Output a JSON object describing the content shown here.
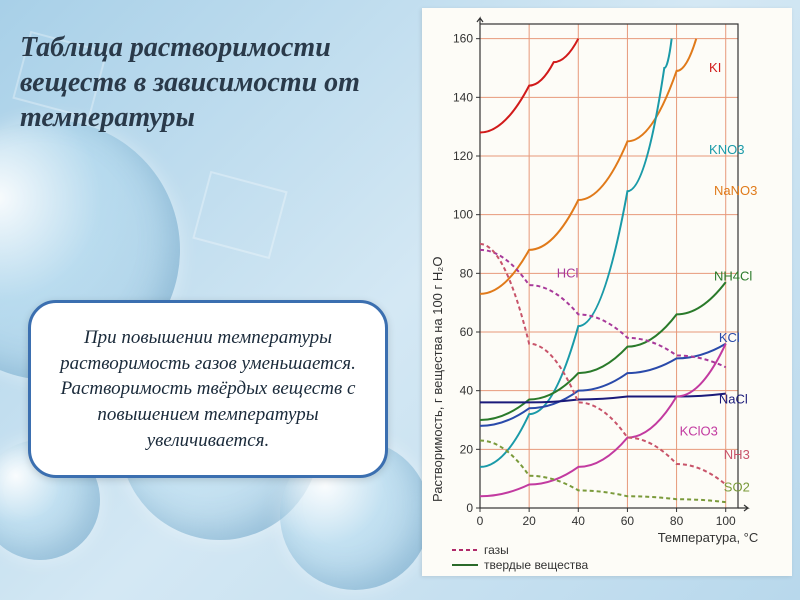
{
  "title": "Таблица растворимости веществ в зависимости от температуры",
  "callout": "При повышении температуры растворимость газов уменьшается. Растворимость твёрдых веществ с повышением температуры увеличивается.",
  "chart": {
    "type": "line",
    "background_color": "#fdfcf7",
    "grid_color": "#e7997a",
    "grid_width": 1,
    "axis_color": "#333333",
    "x": {
      "label": "Температура, °C",
      "min": 0,
      "max": 105,
      "ticks": [
        0,
        20,
        40,
        60,
        80,
        100
      ],
      "label_fontsize": 13
    },
    "y": {
      "label": "Растворимость, г вещества на 100 г H₂O",
      "min": 0,
      "max": 165,
      "ticks": [
        0,
        20,
        40,
        60,
        80,
        100,
        120,
        140,
        160
      ],
      "label_fontsize": 13
    },
    "legend": {
      "items": [
        {
          "label": "газы",
          "dash": "4,3",
          "color": "#b02a6a"
        },
        {
          "label": "твердые вещества",
          "dash": "none",
          "color": "#2a6a2a"
        }
      ]
    },
    "series": [
      {
        "name": "KI",
        "color": "#d11a1a",
        "dash": "none",
        "width": 2,
        "label_xy": [
          92,
          150
        ],
        "points": [
          [
            0,
            128
          ],
          [
            20,
            144
          ],
          [
            30,
            152
          ],
          [
            40,
            160
          ]
        ]
      },
      {
        "name": "NaNO3",
        "color": "#e07a1a",
        "dash": "none",
        "width": 2,
        "label_xy": [
          94,
          108
        ],
        "points": [
          [
            0,
            73
          ],
          [
            20,
            88
          ],
          [
            40,
            105
          ],
          [
            60,
            125
          ],
          [
            80,
            149
          ],
          [
            88,
            160
          ]
        ]
      },
      {
        "name": "KNO3",
        "color": "#1a9aa8",
        "dash": "none",
        "width": 2,
        "label_xy": [
          92,
          122
        ],
        "points": [
          [
            0,
            14
          ],
          [
            20,
            32
          ],
          [
            40,
            62
          ],
          [
            60,
            108
          ],
          [
            75,
            150
          ],
          [
            78,
            160
          ]
        ]
      },
      {
        "name": "NH4Cl",
        "color": "#2a7a2a",
        "dash": "none",
        "width": 2,
        "label_xy": [
          94,
          79
        ],
        "points": [
          [
            0,
            30
          ],
          [
            20,
            37
          ],
          [
            40,
            46
          ],
          [
            60,
            55
          ],
          [
            80,
            66
          ],
          [
            100,
            77
          ]
        ]
      },
      {
        "name": "KCl",
        "color": "#2a4aaa",
        "dash": "none",
        "width": 2,
        "label_xy": [
          96,
          58
        ],
        "points": [
          [
            0,
            28
          ],
          [
            20,
            34
          ],
          [
            40,
            40
          ],
          [
            60,
            46
          ],
          [
            80,
            51
          ],
          [
            100,
            56
          ]
        ]
      },
      {
        "name": "NaCl",
        "color": "#1a1a7a",
        "dash": "none",
        "width": 2,
        "label_xy": [
          96,
          37
        ],
        "points": [
          [
            0,
            36
          ],
          [
            20,
            36
          ],
          [
            40,
            37
          ],
          [
            60,
            38
          ],
          [
            80,
            38
          ],
          [
            100,
            39
          ]
        ]
      },
      {
        "name": "KClO3",
        "color": "#c23aa0",
        "dash": "none",
        "width": 2,
        "label_xy": [
          80,
          26
        ],
        "points": [
          [
            0,
            4
          ],
          [
            20,
            8
          ],
          [
            40,
            14
          ],
          [
            60,
            24
          ],
          [
            80,
            38
          ],
          [
            100,
            56
          ]
        ]
      },
      {
        "name": "HCl",
        "color": "#a83a9a",
        "dash": "4,3",
        "width": 2,
        "label_xy": [
          30,
          80
        ],
        "points": [
          [
            0,
            88
          ],
          [
            20,
            76
          ],
          [
            40,
            66
          ],
          [
            60,
            58
          ],
          [
            80,
            52
          ],
          [
            100,
            48
          ]
        ]
      },
      {
        "name": "NH3",
        "color": "#c8546a",
        "dash": "4,3",
        "width": 2,
        "label_xy": [
          98,
          18
        ],
        "points": [
          [
            0,
            90
          ],
          [
            20,
            56
          ],
          [
            40,
            36
          ],
          [
            60,
            24
          ],
          [
            80,
            15
          ],
          [
            100,
            8
          ]
        ]
      },
      {
        "name": "SO2",
        "color": "#7a9a3a",
        "dash": "4,3",
        "width": 2,
        "label_xy": [
          98,
          7
        ],
        "points": [
          [
            0,
            23
          ],
          [
            20,
            11
          ],
          [
            40,
            6
          ],
          [
            60,
            4
          ],
          [
            80,
            3
          ],
          [
            100,
            2
          ]
        ]
      }
    ]
  }
}
